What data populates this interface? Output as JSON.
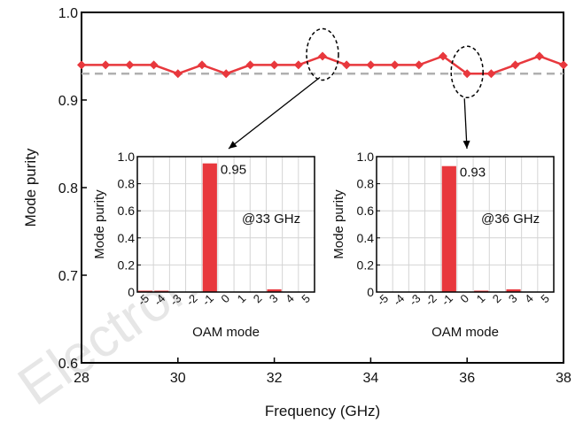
{
  "watermark": "Electron Eng",
  "chart_data": [
    {
      "type": "line",
      "xlabel": "Frequency (GHz)",
      "ylabel": "Mode purity",
      "xlim": [
        28,
        38
      ],
      "ylim": [
        0.6,
        1.0
      ],
      "xticks": [
        28,
        30,
        32,
        34,
        36,
        38
      ],
      "xtick_labels": [
        "28",
        "30",
        "32",
        "34",
        "36",
        "38"
      ],
      "yticks": [
        0.6,
        0.7,
        0.8,
        0.9,
        1.0
      ],
      "ytick_labels": [
        "0.6",
        "0.7",
        "0.8",
        "0.9",
        "1.0"
      ],
      "grid": false,
      "colors": {
        "series": "#e8383d",
        "reference": "#b0b0b0"
      },
      "series": [
        {
          "x": [
            28,
            28.5,
            29,
            29.5,
            30,
            30.5,
            31,
            31.5,
            32,
            32.5,
            33,
            33.5,
            34,
            34.5,
            35,
            35.5,
            36,
            36.5,
            37,
            37.5,
            38
          ],
          "y": [
            0.94,
            0.94,
            0.94,
            0.94,
            0.93,
            0.94,
            0.93,
            0.94,
            0.94,
            0.94,
            0.95,
            0.94,
            0.94,
            0.94,
            0.94,
            0.95,
            0.93,
            0.93,
            0.94,
            0.95,
            0.94
          ]
        }
      ],
      "reference_line": {
        "y": 0.93,
        "style": "dashed"
      },
      "highlights": [
        {
          "x": 33,
          "y": 0.95
        },
        {
          "x": 36,
          "y": 0.93
        }
      ]
    },
    {
      "type": "bar",
      "xlabel": "OAM mode",
      "ylabel": "Mode purity",
      "annotation": "@33 GHz",
      "peak_label": "0.95",
      "ylim": [
        0,
        1.0
      ],
      "yticks": [
        0,
        0.2,
        0.4,
        0.6,
        0.8,
        1.0
      ],
      "ytick_labels": [
        "0",
        "0.2",
        "0.4",
        "0.6",
        "0.8",
        "1.0"
      ],
      "categories": [
        "-5",
        "-4",
        "-3",
        "-2",
        "-1",
        "0",
        "1",
        "2",
        "3",
        "4",
        "5"
      ],
      "values": [
        0.01,
        0.01,
        0.0,
        0.0,
        0.95,
        0.0,
        0.0,
        0.0,
        0.02,
        0.0,
        0.0
      ],
      "color": "#e8383d"
    },
    {
      "type": "bar",
      "xlabel": "OAM mode",
      "ylabel": "Mode purity",
      "annotation": "@36 GHz",
      "peak_label": "0.93",
      "ylim": [
        0,
        1.0
      ],
      "yticks": [
        0,
        0.2,
        0.4,
        0.6,
        0.8,
        1.0
      ],
      "ytick_labels": [
        "0",
        "0.2",
        "0.4",
        "0.6",
        "0.8",
        "1.0"
      ],
      "categories": [
        "-5",
        "-4",
        "-3",
        "-2",
        "-1",
        "0",
        "1",
        "2",
        "3",
        "4",
        "5"
      ],
      "values": [
        0.0,
        0.0,
        0.0,
        0.0,
        0.93,
        0.0,
        0.01,
        0.0,
        0.02,
        0.0,
        0.0
      ],
      "color": "#e8383d"
    }
  ]
}
